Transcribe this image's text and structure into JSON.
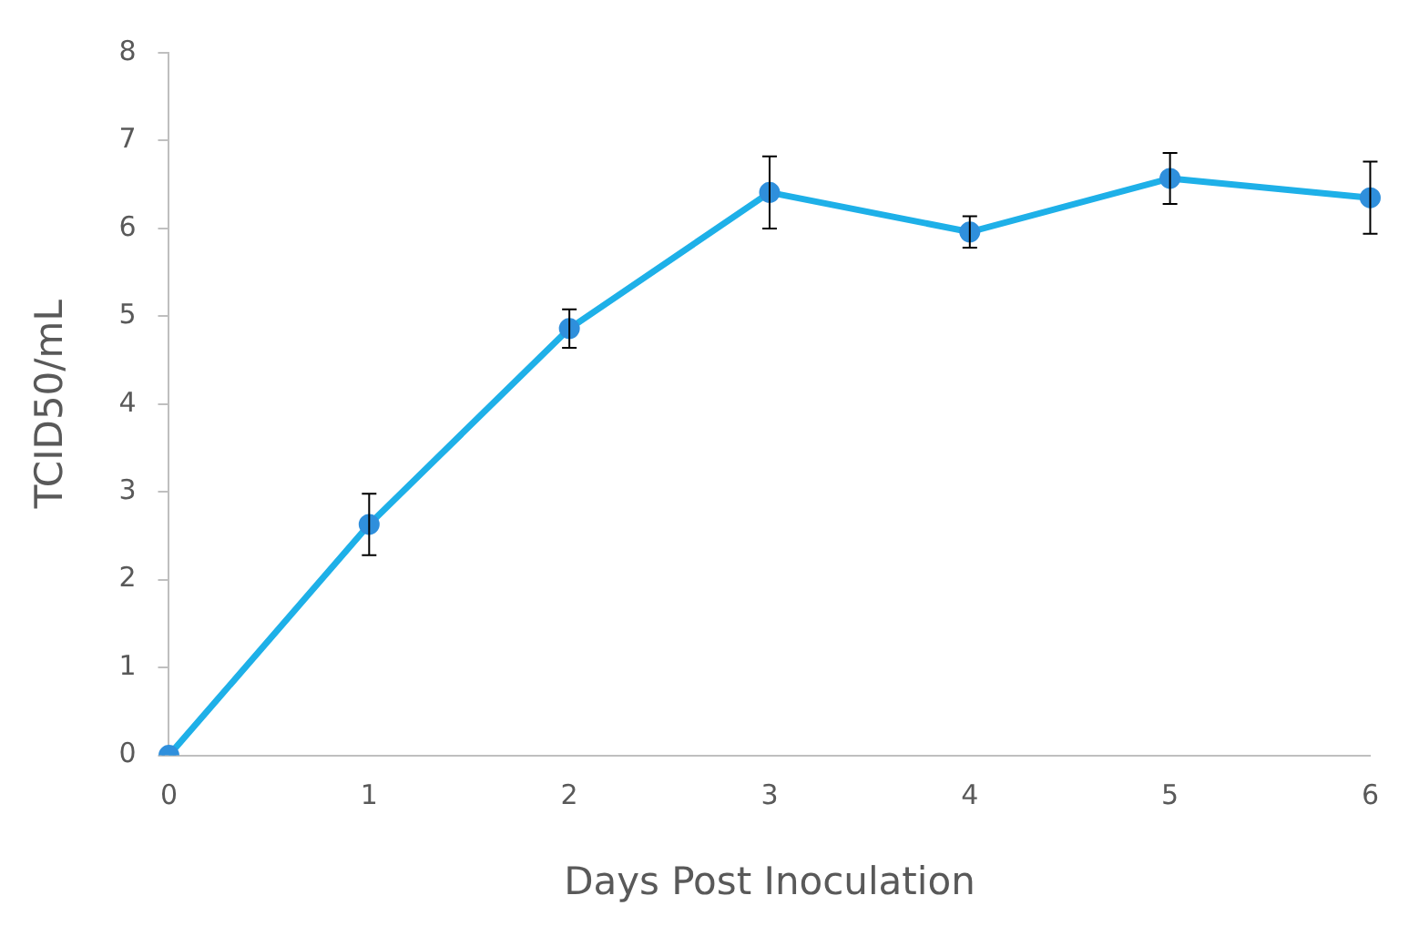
{
  "chart_data": {
    "type": "line",
    "xlabel": "Days Post Inoculation",
    "ylabel": "TCID50/mL",
    "categories": [
      "0",
      "1",
      "2",
      "3",
      "4",
      "5",
      "6"
    ],
    "series": [
      {
        "color": "#1eb0e8",
        "values": [
          0,
          2.63,
          4.86,
          6.41,
          5.96,
          6.57,
          6.35
        ],
        "errors": [
          null,
          0.35,
          0.22,
          0.41,
          0.18,
          0.29,
          0.41
        ]
      }
    ],
    "ylim": [
      0,
      8
    ],
    "yticks": [
      0,
      1,
      2,
      3,
      4,
      5,
      6,
      7,
      8
    ],
    "grid": false,
    "marker": "circle",
    "line_style": "solid"
  }
}
